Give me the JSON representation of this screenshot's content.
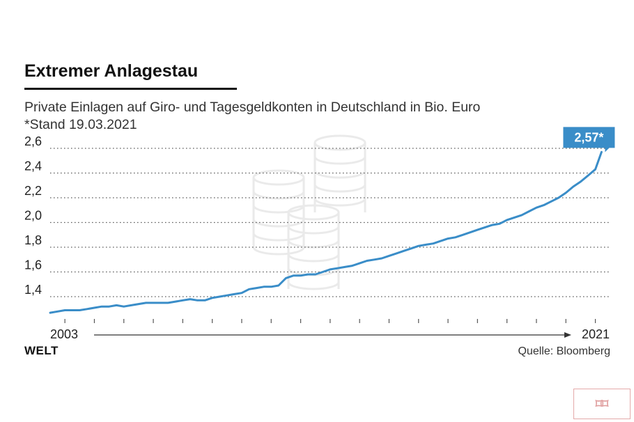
{
  "header": {
    "title": "Extremer Anlagestau",
    "subtitle_line1": "Private Einlagen auf Giro- und Tagesgeldkonten in Deutschland in Bio. Euro",
    "subtitle_line2": "*Stand 19.03.2021"
  },
  "footer": {
    "brand": "WELT",
    "source": "Quelle: Bloomberg"
  },
  "colors": {
    "line": "#3a8dc8",
    "callout": "#3a8dc8",
    "grid": "#555555",
    "text": "#222222"
  },
  "background_icon": "coin-stack-icon",
  "chart_data": {
    "type": "line",
    "title": "Extremer Anlagestau",
    "subtitle": "Private Einlagen auf Giro- und Tagesgeldkonten in Deutschland in Bio. Euro",
    "xlabel": "",
    "ylabel": "",
    "x_start_label": "2003",
    "x_end_label": "2021",
    "x_range": [
      2002.5,
      2021.2
    ],
    "ylim": [
      1.25,
      2.6
    ],
    "yticks": [
      1.4,
      1.6,
      1.8,
      2.0,
      2.2,
      2.4,
      2.6
    ],
    "ytick_labels": [
      "1,4",
      "1,6",
      "1,8",
      "2,0",
      "2,2",
      "2,4",
      "2,6"
    ],
    "xticks": [
      2003,
      2004,
      2005,
      2006,
      2007,
      2008,
      2009,
      2010,
      2011,
      2012,
      2013,
      2014,
      2015,
      2016,
      2017,
      2018,
      2019,
      2020,
      2021
    ],
    "grid": "dotted-horizontal",
    "callout": "2,57*",
    "series": [
      {
        "name": "",
        "points": [
          [
            2002.5,
            1.27
          ],
          [
            2002.75,
            1.28
          ],
          [
            2003.0,
            1.29
          ],
          [
            2003.25,
            1.29
          ],
          [
            2003.5,
            1.29
          ],
          [
            2003.75,
            1.3
          ],
          [
            2004.0,
            1.31
          ],
          [
            2004.25,
            1.32
          ],
          [
            2004.5,
            1.32
          ],
          [
            2004.75,
            1.33
          ],
          [
            2005.0,
            1.32
          ],
          [
            2005.25,
            1.33
          ],
          [
            2005.5,
            1.34
          ],
          [
            2005.75,
            1.35
          ],
          [
            2006.0,
            1.35
          ],
          [
            2006.25,
            1.35
          ],
          [
            2006.5,
            1.35
          ],
          [
            2006.75,
            1.36
          ],
          [
            2007.0,
            1.37
          ],
          [
            2007.25,
            1.38
          ],
          [
            2007.5,
            1.37
          ],
          [
            2007.75,
            1.37
          ],
          [
            2008.0,
            1.39
          ],
          [
            2008.25,
            1.4
          ],
          [
            2008.5,
            1.41
          ],
          [
            2008.75,
            1.42
          ],
          [
            2009.0,
            1.43
          ],
          [
            2009.25,
            1.46
          ],
          [
            2009.5,
            1.47
          ],
          [
            2009.75,
            1.48
          ],
          [
            2010.0,
            1.48
          ],
          [
            2010.25,
            1.49
          ],
          [
            2010.5,
            1.55
          ],
          [
            2010.75,
            1.57
          ],
          [
            2011.0,
            1.57
          ],
          [
            2011.25,
            1.58
          ],
          [
            2011.5,
            1.58
          ],
          [
            2011.75,
            1.6
          ],
          [
            2012.0,
            1.62
          ],
          [
            2012.25,
            1.63
          ],
          [
            2012.5,
            1.64
          ],
          [
            2012.75,
            1.65
          ],
          [
            2013.0,
            1.67
          ],
          [
            2013.25,
            1.69
          ],
          [
            2013.5,
            1.7
          ],
          [
            2013.75,
            1.71
          ],
          [
            2014.0,
            1.73
          ],
          [
            2014.25,
            1.75
          ],
          [
            2014.5,
            1.77
          ],
          [
            2014.75,
            1.79
          ],
          [
            2015.0,
            1.81
          ],
          [
            2015.25,
            1.82
          ],
          [
            2015.5,
            1.83
          ],
          [
            2015.75,
            1.85
          ],
          [
            2016.0,
            1.87
          ],
          [
            2016.25,
            1.88
          ],
          [
            2016.5,
            1.9
          ],
          [
            2016.75,
            1.92
          ],
          [
            2017.0,
            1.94
          ],
          [
            2017.25,
            1.96
          ],
          [
            2017.5,
            1.98
          ],
          [
            2017.75,
            1.99
          ],
          [
            2018.0,
            2.02
          ],
          [
            2018.25,
            2.04
          ],
          [
            2018.5,
            2.06
          ],
          [
            2018.75,
            2.09
          ],
          [
            2019.0,
            2.12
          ],
          [
            2019.25,
            2.14
          ],
          [
            2019.5,
            2.17
          ],
          [
            2019.75,
            2.2
          ],
          [
            2020.0,
            2.24
          ],
          [
            2020.25,
            2.29
          ],
          [
            2020.5,
            2.33
          ],
          [
            2020.75,
            2.38
          ],
          [
            2021.0,
            2.43
          ],
          [
            2021.21,
            2.57
          ]
        ]
      }
    ]
  }
}
